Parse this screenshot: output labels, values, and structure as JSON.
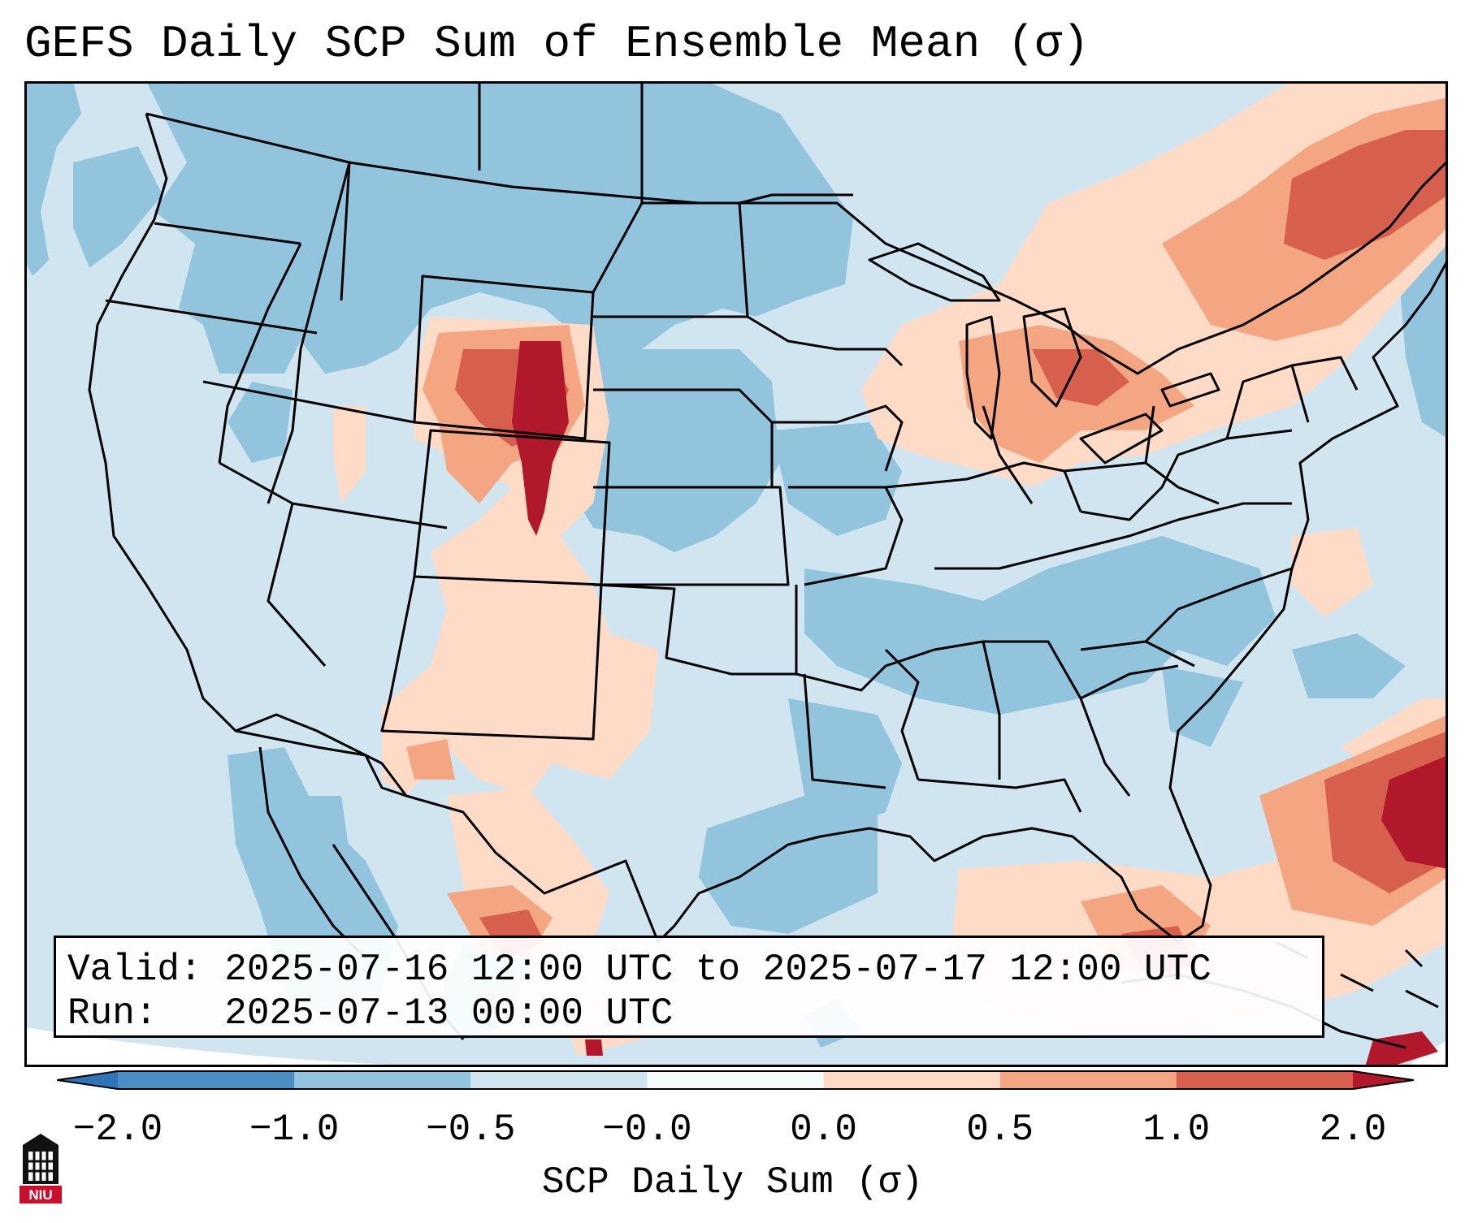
{
  "title": "GEFS Daily SCP Sum of Ensemble Mean (σ)",
  "info": {
    "valid_label": "Valid:",
    "valid_value": "2025-07-16 12:00 UTC to 2025-07-17 12:00 UTC",
    "run_label": "Run:",
    "run_value": "2025-07-13 00:00 UTC"
  },
  "colorbar": {
    "label": "SCP Daily Sum (σ)",
    "ticks": [
      "−2.0",
      "−1.0",
      "−0.5",
      "−0.0",
      "0.0",
      "0.5",
      "1.0",
      "2.0"
    ],
    "bins": [
      {
        "color": "#4a8fc4"
      },
      {
        "color": "#92c4de"
      },
      {
        "color": "#d1e5f0"
      },
      {
        "color": "#f8fbfd"
      },
      {
        "color": "#fddbc7"
      },
      {
        "color": "#f4a582"
      },
      {
        "color": "#d6604d"
      }
    ],
    "under_color": "#2f75b5",
    "over_color": "#b2182b",
    "extend": "both"
  },
  "map": {
    "region": "Contiguous United States",
    "colors": {
      "background_water": "#d1e5f0",
      "neg_strong": "#92c4de",
      "pos_light": "#fddbc7",
      "pos_mid": "#f4a582",
      "pos_strong": "#d6604d",
      "pos_max": "#b2182b",
      "border": "#000000"
    }
  },
  "logo": {
    "text": "NIU"
  }
}
